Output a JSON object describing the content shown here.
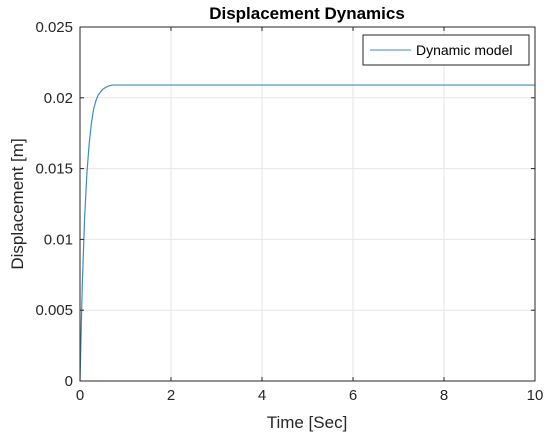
{
  "chart_data": {
    "type": "line",
    "title": "Displacement Dynamics",
    "xlabel": "Time [Sec]",
    "ylabel": "Displacement [m]",
    "xlim": [
      0,
      10
    ],
    "ylim": [
      0,
      0.025
    ],
    "x_ticks": [
      0,
      2,
      4,
      6,
      8,
      10
    ],
    "x_tick_labels": [
      "0",
      "2",
      "4",
      "6",
      "8",
      "10"
    ],
    "y_ticks": [
      0,
      0.005,
      0.01,
      0.015,
      0.02,
      0.025
    ],
    "y_tick_labels": [
      "0",
      "0.005",
      "0.01",
      "0.015",
      "0.02",
      "0.025"
    ],
    "grid": true,
    "legend": {
      "position": "top-right",
      "entries": [
        "Dynamic model"
      ]
    },
    "series": [
      {
        "name": "Dynamic model",
        "color": "#3c8dbf",
        "x": [
          0,
          0.05,
          0.1,
          0.15,
          0.2,
          0.25,
          0.3,
          0.35,
          0.4,
          0.5,
          0.6,
          0.7,
          0.8,
          1.0,
          1.5,
          2,
          3,
          4,
          5,
          6,
          7,
          8,
          9,
          10
        ],
        "y": [
          0,
          0.0068,
          0.0114,
          0.0146,
          0.0167,
          0.0182,
          0.0192,
          0.0198,
          0.0202,
          0.0206,
          0.0208,
          0.0209,
          0.0209,
          0.0209,
          0.0209,
          0.0209,
          0.0209,
          0.0209,
          0.0209,
          0.0209,
          0.0209,
          0.0209,
          0.0209,
          0.0209
        ]
      }
    ]
  }
}
